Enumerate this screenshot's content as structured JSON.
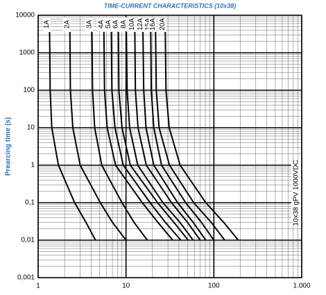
{
  "chart_data": {
    "type": "line",
    "title": "TIME-CURRENT CHARACTERISTICS (10x38)",
    "y_label": "Prearcing time (s)",
    "annotation": "10x38 gPV 1000VDC",
    "log_x": true,
    "log_y": true,
    "grid": true,
    "xlim": [
      1,
      1000
    ],
    "xticks": [
      1,
      10,
      100,
      {
        "value": 1000,
        "label": "1.000"
      }
    ],
    "ylim": [
      0.001,
      10000
    ],
    "yticks": [
      {
        "value": 0.001,
        "label": "0,001"
      },
      {
        "value": 0.01,
        "label": "0,01"
      },
      {
        "value": 0.1,
        "label": "0,1"
      },
      1,
      10,
      100,
      1000,
      10000
    ],
    "series": [
      {
        "name": "1A",
        "color": "#000000",
        "x": [
          1.35,
          1.37,
          1.43,
          1.7,
          2.6,
          3.5,
          4.5
        ],
        "values": [
          3600,
          100,
          10,
          1,
          0.1,
          0.03,
          0.01
        ]
      },
      {
        "name": "2A",
        "color": "#000000",
        "x": [
          2.3,
          2.33,
          2.48,
          3.01,
          5.1,
          7.0,
          10
        ],
        "values": [
          3600,
          100,
          10,
          1,
          0.1,
          0.03,
          0.01
        ]
      },
      {
        "name": "3A",
        "color": "#000000",
        "x": [
          4.1,
          4.16,
          4.4,
          5.3,
          9.0,
          12.3,
          17.5
        ],
        "values": [
          3600,
          100,
          10,
          1,
          0.1,
          0.03,
          0.01
        ]
      },
      {
        "name": "4A",
        "color": "#000000",
        "x": [
          5.6,
          5.7,
          6.1,
          7.6,
          15.3,
          23,
          34
        ],
        "values": [
          3600,
          100,
          10,
          1,
          0.1,
          0.03,
          0.01
        ]
      },
      {
        "name": "5A",
        "color": "#000000",
        "x": [
          6.8,
          6.9,
          7.5,
          9.3,
          18.8,
          28,
          42
        ],
        "values": [
          3600,
          100,
          10,
          1,
          0.1,
          0.03,
          0.01
        ]
      },
      {
        "name": "6A",
        "color": "#000000",
        "x": [
          8.2,
          8.3,
          9.0,
          11.2,
          22.9,
          35,
          51
        ],
        "values": [
          3600,
          100,
          10,
          1,
          0.1,
          0.03,
          0.01
        ]
      },
      {
        "name": "8A",
        "color": "#000000",
        "x": [
          10.1,
          10.3,
          11,
          13.6,
          26.3,
          41,
          58
        ],
        "values": [
          3600,
          100,
          10,
          1,
          0.1,
          0.03,
          0.01
        ]
      },
      {
        "name": "10A",
        "color": "#000000",
        "x": [
          12.6,
          12.8,
          13.7,
          17,
          33,
          50,
          70
        ],
        "values": [
          3600,
          100,
          10,
          1,
          0.1,
          0.03,
          0.01
        ]
      },
      {
        "name": "12A",
        "color": "#000000",
        "x": [
          15.6,
          15.9,
          16.9,
          20.7,
          38.7,
          58,
          81
        ],
        "values": [
          3600,
          100,
          10,
          1,
          0.1,
          0.03,
          0.01
        ]
      },
      {
        "name": "15A",
        "color": "#000000",
        "x": [
          19.1,
          19.4,
          20.7,
          25.4,
          47.8,
          72,
          100
        ],
        "values": [
          3600,
          100,
          10,
          1,
          0.1,
          0.03,
          0.01
        ]
      },
      {
        "name": "16A",
        "color": "#000000",
        "x": [
          21.7,
          22.1,
          23.8,
          31.3,
          59,
          93,
          133
        ],
        "values": [
          3600,
          100,
          10,
          1,
          0.1,
          0.03,
          0.01
        ]
      },
      {
        "name": "20A",
        "color": "#000000",
        "x": [
          28,
          28.5,
          31,
          41.3,
          81,
          129,
          190
        ],
        "values": [
          3600,
          100,
          10,
          1,
          0.1,
          0.03,
          0.01
        ]
      }
    ]
  }
}
